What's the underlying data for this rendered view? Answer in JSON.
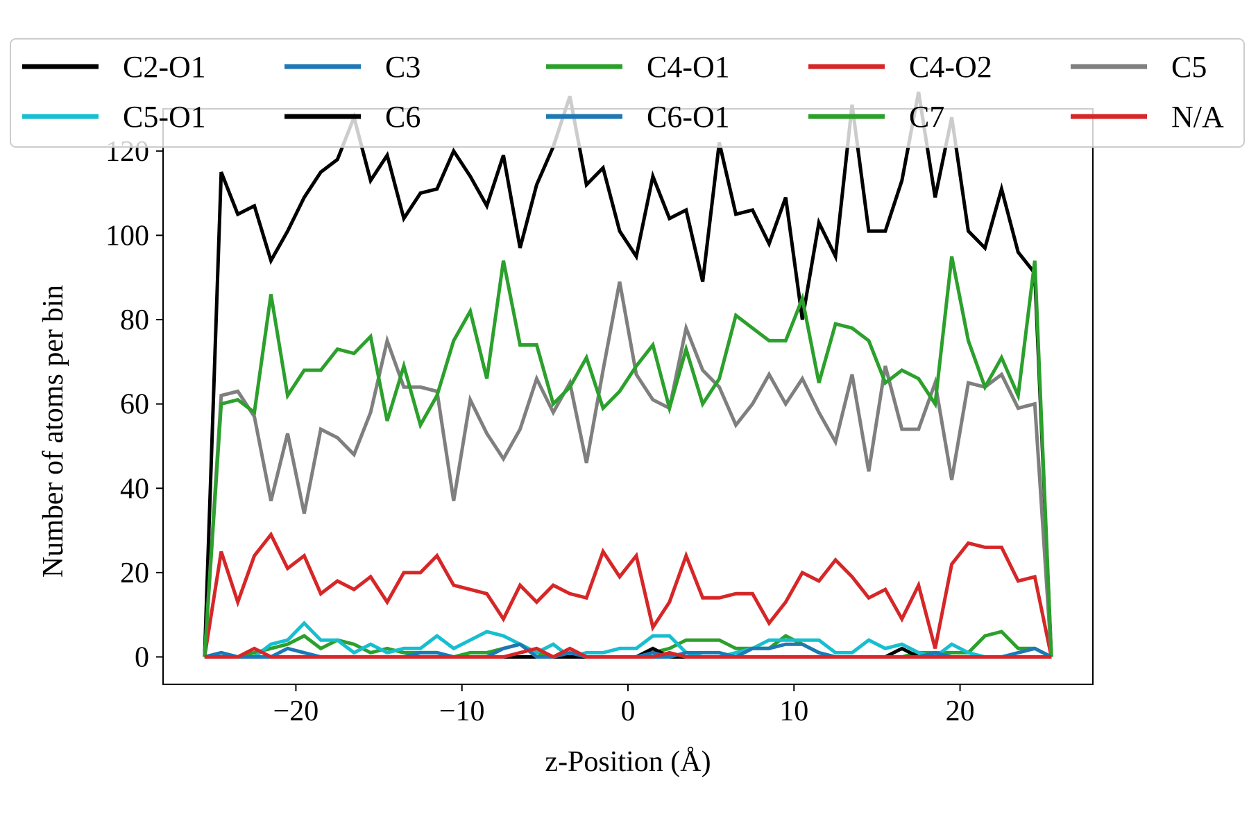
{
  "chart_data": {
    "type": "line",
    "title": "",
    "xlabel": "z-Position (Å)",
    "ylabel": "Number of atoms per bin",
    "xlim": [
      -28,
      28
    ],
    "ylim": [
      -6.5,
      130
    ],
    "xticks": [
      -20,
      -10,
      0,
      10,
      20
    ],
    "xtick_labels": [
      "−20",
      "−10",
      "0",
      "10",
      "20"
    ],
    "yticks": [
      0,
      20,
      40,
      60,
      80,
      100,
      120
    ],
    "ytick_labels": [
      "0",
      "20",
      "40",
      "60",
      "80",
      "100",
      "120"
    ],
    "grid": false,
    "legend_position": "top",
    "legend_columns": 5,
    "x": [
      -25.5,
      -24.5,
      -23.5,
      -22.5,
      -21.5,
      -20.5,
      -19.5,
      -18.5,
      -17.5,
      -16.5,
      -15.5,
      -14.5,
      -13.5,
      -12.5,
      -11.5,
      -10.5,
      -9.5,
      -8.5,
      -7.5,
      -6.5,
      -5.5,
      -4.5,
      -3.5,
      -2.5,
      -1.5,
      -0.5,
      0.5,
      1.5,
      2.5,
      3.5,
      4.5,
      5.5,
      6.5,
      7.5,
      8.5,
      9.5,
      10.5,
      11.5,
      12.5,
      13.5,
      14.5,
      15.5,
      16.5,
      17.5,
      18.5,
      19.5,
      20.5,
      21.5,
      22.5,
      23.5,
      24.5,
      25.5
    ],
    "series": [
      {
        "name": "C2-O1",
        "color": "#000000",
        "values": [
          0,
          115,
          105,
          107,
          94,
          101,
          109,
          115,
          118,
          128,
          113,
          119,
          104,
          110,
          111,
          120,
          114,
          107,
          119,
          97,
          112,
          121,
          133,
          112,
          116,
          101,
          95,
          114,
          104,
          106,
          89,
          122,
          105,
          106,
          98,
          109,
          80,
          103,
          95,
          131,
          101,
          101,
          113,
          134,
          109,
          128,
          101,
          97,
          111,
          96,
          91,
          0
        ]
      },
      {
        "name": "C3",
        "color": "#1f77b4",
        "values": [
          0,
          0,
          0,
          0,
          0,
          0,
          0,
          0,
          0,
          0,
          0,
          0,
          0,
          0,
          0,
          0,
          0,
          0,
          0,
          0,
          0,
          0,
          0,
          0,
          0,
          0,
          0,
          0,
          0,
          0,
          0,
          0,
          0,
          0,
          0,
          0,
          0,
          0,
          0,
          0,
          0,
          0,
          0,
          0,
          0,
          0,
          0,
          0,
          0,
          0,
          0,
          0
        ]
      },
      {
        "name": "C4-O1",
        "color": "#2ca02c",
        "values": [
          0,
          0,
          0,
          1,
          2,
          3,
          5,
          2,
          4,
          3,
          1,
          2,
          1,
          1,
          1,
          0,
          1,
          1,
          2,
          3,
          1,
          0,
          0,
          0,
          0,
          0,
          0,
          1,
          2,
          4,
          4,
          4,
          2,
          2,
          2,
          5,
          3,
          1,
          0,
          0,
          0,
          0,
          0,
          1,
          1,
          1,
          1,
          5,
          6,
          2,
          2,
          0
        ]
      },
      {
        "name": "C4-O2",
        "color": "#d62728",
        "values": [
          0,
          25,
          13,
          24,
          29,
          21,
          24,
          15,
          18,
          16,
          19,
          13,
          20,
          20,
          24,
          17,
          16,
          15,
          9,
          17,
          13,
          17,
          15,
          14,
          25,
          19,
          24,
          7,
          13,
          24,
          14,
          14,
          15,
          15,
          8,
          13,
          20,
          18,
          23,
          19,
          14,
          16,
          9,
          17,
          2,
          22,
          27,
          26,
          26,
          18,
          19,
          0
        ]
      },
      {
        "name": "C5",
        "color": "#7f7f7f",
        "values": [
          0,
          62,
          63,
          57,
          37,
          53,
          34,
          54,
          52,
          48,
          58,
          75,
          64,
          64,
          63,
          37,
          61,
          53,
          47,
          54,
          66,
          58,
          65,
          46,
          68,
          89,
          67,
          61,
          59,
          78,
          68,
          64,
          55,
          60,
          67,
          60,
          66,
          58,
          51,
          67,
          44,
          69,
          54,
          54,
          65,
          42,
          65,
          64,
          67,
          59,
          60,
          0
        ]
      },
      {
        "name": "C5-O1",
        "color": "#17becf",
        "values": [
          0,
          0,
          0,
          0,
          3,
          4,
          8,
          4,
          4,
          1,
          3,
          1,
          2,
          2,
          5,
          2,
          4,
          6,
          5,
          3,
          1,
          3,
          0,
          1,
          1,
          2,
          2,
          5,
          5,
          1,
          0,
          0,
          1,
          2,
          4,
          4,
          4,
          4,
          1,
          1,
          4,
          2,
          3,
          1,
          0,
          3,
          1,
          0,
          0,
          0,
          0,
          0
        ]
      },
      {
        "name": "C6",
        "color": "#000000",
        "values": [
          0,
          1,
          0,
          0,
          0,
          0,
          0,
          0,
          0,
          0,
          0,
          0,
          0,
          0,
          0,
          0,
          0,
          0,
          0,
          0,
          0,
          0,
          0,
          0,
          0,
          0,
          0,
          2,
          0,
          0,
          0,
          0,
          0,
          0,
          0,
          0,
          0,
          0,
          0,
          0,
          0,
          0,
          2,
          0,
          0,
          0,
          0,
          0,
          0,
          0,
          0,
          0
        ]
      },
      {
        "name": "C6-O1",
        "color": "#1f77b4",
        "values": [
          0,
          1,
          0,
          0,
          0,
          2,
          1,
          0,
          0,
          0,
          0,
          0,
          0,
          1,
          1,
          0,
          0,
          0,
          2,
          3,
          0,
          0,
          1,
          0,
          0,
          0,
          0,
          1,
          0,
          1,
          1,
          1,
          0,
          2,
          2,
          3,
          3,
          1,
          0,
          0,
          0,
          0,
          0,
          0,
          1,
          0,
          0,
          0,
          0,
          1,
          2,
          0
        ]
      },
      {
        "name": "C7",
        "color": "#2ca02c",
        "values": [
          0,
          60,
          61,
          58,
          86,
          62,
          68,
          68,
          73,
          72,
          76,
          56,
          69,
          55,
          62,
          75,
          82,
          66,
          94,
          74,
          74,
          60,
          64,
          71,
          59,
          63,
          69,
          74,
          59,
          73,
          60,
          66,
          81,
          78,
          75,
          75,
          85,
          65,
          79,
          78,
          75,
          65,
          68,
          66,
          60,
          95,
          75,
          64,
          71,
          62,
          94,
          0
        ]
      },
      {
        "name": "N/A",
        "color": "#d62728",
        "values": [
          0,
          0,
          0,
          2,
          0,
          0,
          0,
          0,
          0,
          0,
          0,
          0,
          0,
          0,
          0,
          0,
          0,
          0,
          0,
          1,
          2,
          0,
          2,
          0,
          0,
          0,
          0,
          0,
          1,
          0,
          0,
          0,
          0,
          0,
          0,
          0,
          0,
          0,
          0,
          0,
          0,
          0,
          0,
          0,
          0,
          0,
          0,
          0,
          0,
          0,
          0,
          0
        ]
      }
    ]
  }
}
